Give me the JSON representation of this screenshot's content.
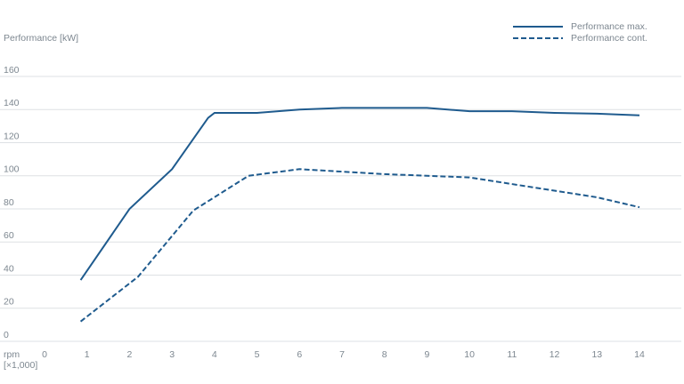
{
  "chart_data": {
    "type": "line",
    "y_label": "Performance [kW]",
    "x_label": "rpm",
    "x_unit": "[×1,000]",
    "xlim": [
      0,
      14
    ],
    "xticks": [
      0,
      1,
      2,
      3,
      4,
      5,
      6,
      7,
      8,
      9,
      10,
      11,
      12,
      13,
      14
    ],
    "ylim": [
      0,
      160
    ],
    "yticks": [
      0,
      20,
      40,
      60,
      80,
      100,
      120,
      140,
      160
    ],
    "grid": true,
    "legend": "top-right",
    "series": [
      {
        "name": "Performance max.",
        "color": "#1f5b8e",
        "line_style": "solid",
        "x": [
          0.85,
          2,
          3,
          3.85,
          4,
          5,
          6,
          7,
          8,
          9,
          10,
          11,
          12,
          13,
          14
        ],
        "values": [
          37,
          80,
          104,
          135,
          138,
          138,
          140,
          141,
          141,
          141,
          139,
          139,
          138,
          137.5,
          136.5
        ]
      },
      {
        "name": "Performance cont.",
        "color": "#1f5b8e",
        "line_style": "dashed",
        "x": [
          0.85,
          2.2,
          3.5,
          4.8,
          6,
          7,
          8,
          9,
          10,
          11,
          12,
          13,
          14
        ],
        "values": [
          12,
          39,
          79,
          100,
          104,
          102.5,
          101,
          100,
          99,
          95,
          91,
          87,
          81
        ]
      }
    ]
  }
}
